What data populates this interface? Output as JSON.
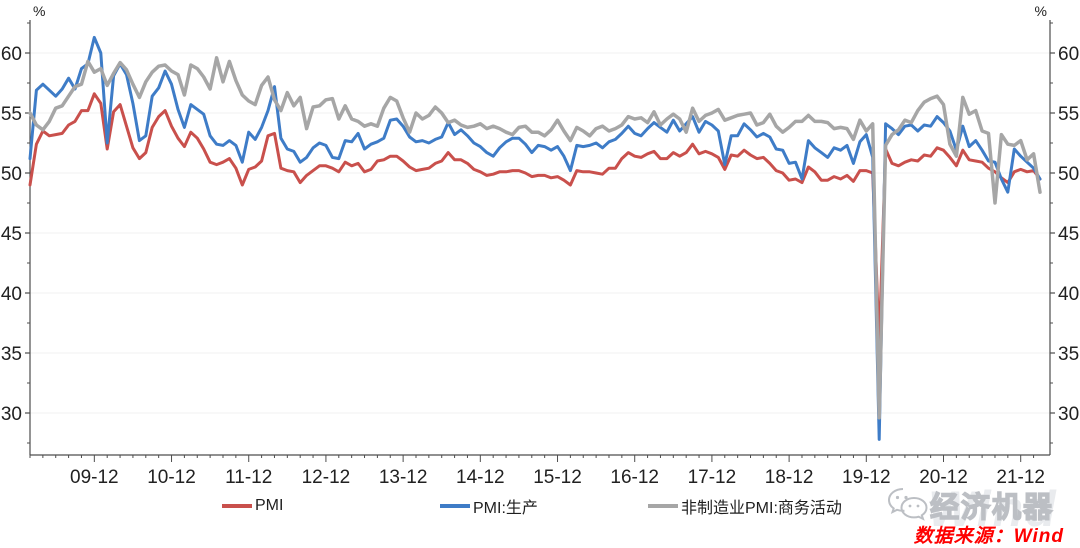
{
  "chart_data": {
    "type": "line",
    "title": "",
    "unit_label": "%",
    "x_start": "2009-02",
    "x_end": "2022-03",
    "frequency": "monthly",
    "x_tick_labels": [
      "09-12",
      "10-12",
      "11-12",
      "12-12",
      "13-12",
      "14-12",
      "15-12",
      "16-12",
      "17-12",
      "18-12",
      "19-12",
      "20-12",
      "21-12"
    ],
    "x_tick_indices": [
      10,
      22,
      34,
      46,
      58,
      70,
      82,
      94,
      106,
      118,
      130,
      142,
      154
    ],
    "ylim": [
      26.5,
      62.75
    ],
    "y_ticks": [
      30,
      35,
      40,
      45,
      50,
      55,
      60
    ],
    "y_minor_ticks": [
      27.5,
      32.5,
      37.5,
      42.5,
      47.5,
      52.5,
      57.5,
      62.5
    ],
    "grid": "horizontal-faint",
    "legend_position": "bottom",
    "series": [
      {
        "name": "PMI",
        "color": "#c9504c",
        "width": 3,
        "values": [
          49.0,
          52.4,
          53.5,
          53.1,
          53.2,
          53.3,
          54.0,
          54.3,
          55.2,
          55.2,
          56.6,
          55.8,
          52.0,
          55.1,
          55.7,
          53.9,
          52.1,
          51.2,
          51.7,
          53.8,
          54.7,
          55.2,
          53.9,
          52.9,
          52.2,
          53.4,
          52.9,
          52.0,
          50.9,
          50.7,
          50.9,
          51.2,
          50.4,
          49.0,
          50.3,
          50.5,
          51.0,
          53.1,
          53.3,
          50.4,
          50.2,
          50.1,
          49.2,
          49.8,
          50.2,
          50.6,
          50.6,
          50.4,
          50.1,
          50.9,
          50.6,
          50.8,
          50.1,
          50.3,
          51.0,
          51.1,
          51.4,
          51.4,
          51.0,
          50.5,
          50.2,
          50.3,
          50.4,
          50.8,
          51.0,
          51.7,
          51.1,
          51.1,
          50.8,
          50.3,
          50.1,
          49.8,
          49.9,
          50.1,
          50.1,
          50.2,
          50.2,
          50.0,
          49.7,
          49.8,
          49.8,
          49.6,
          49.7,
          49.4,
          49.0,
          50.2,
          50.1,
          50.1,
          50.0,
          49.9,
          50.4,
          50.4,
          51.2,
          51.7,
          51.4,
          51.3,
          51.6,
          51.8,
          51.2,
          51.2,
          51.7,
          51.4,
          51.7,
          52.4,
          51.6,
          51.8,
          51.6,
          51.3,
          50.3,
          51.5,
          51.4,
          51.9,
          51.5,
          51.2,
          51.3,
          50.8,
          50.2,
          50.0,
          49.4,
          49.5,
          49.2,
          50.5,
          50.1,
          49.4,
          49.4,
          49.7,
          49.5,
          49.8,
          49.3,
          50.2,
          50.2,
          50.0,
          35.7,
          52.0,
          50.8,
          50.6,
          50.9,
          51.1,
          51.0,
          51.5,
          51.4,
          52.1,
          51.9,
          51.3,
          50.6,
          51.9,
          51.1,
          51.0,
          50.9,
          50.4,
          50.1,
          49.6,
          49.2,
          50.1,
          50.3,
          50.1,
          50.2,
          49.5
        ]
      },
      {
        "name": "PMI:生产",
        "color": "#3e7cc7",
        "width": 3,
        "values": [
          51.2,
          56.9,
          57.4,
          56.9,
          56.4,
          57.0,
          57.9,
          57.0,
          58.7,
          59.1,
          61.3,
          60.0,
          52.5,
          58.1,
          59.1,
          58.2,
          55.8,
          52.7,
          53.1,
          56.4,
          57.1,
          58.5,
          57.4,
          55.3,
          53.8,
          55.7,
          55.3,
          54.9,
          53.1,
          52.4,
          52.3,
          52.7,
          52.3,
          50.9,
          53.4,
          52.8,
          53.8,
          55.2,
          57.2,
          52.9,
          52.0,
          51.8,
          50.9,
          51.3,
          52.1,
          52.5,
          52.3,
          51.3,
          51.2,
          52.7,
          52.6,
          53.3,
          52.0,
          52.4,
          52.6,
          52.9,
          54.4,
          54.5,
          53.9,
          53.0,
          52.6,
          52.7,
          52.5,
          52.8,
          53.0,
          54.2,
          53.2,
          53.6,
          53.1,
          52.5,
          52.2,
          51.7,
          51.4,
          52.1,
          52.6,
          52.9,
          52.9,
          52.4,
          51.7,
          52.3,
          52.2,
          51.9,
          52.2,
          51.4,
          50.2,
          52.3,
          52.2,
          52.3,
          52.5,
          52.1,
          52.6,
          52.8,
          53.3,
          53.9,
          53.3,
          53.1,
          53.7,
          54.2,
          53.8,
          53.4,
          54.4,
          53.5,
          54.1,
          54.7,
          53.4,
          54.3,
          54.0,
          53.5,
          50.7,
          53.1,
          53.1,
          54.1,
          53.6,
          53.0,
          53.3,
          53.0,
          52.0,
          51.9,
          50.8,
          50.9,
          49.5,
          52.7,
          52.1,
          51.7,
          51.3,
          52.1,
          51.9,
          52.3,
          50.8,
          52.6,
          53.2,
          51.3,
          27.8,
          54.1,
          53.7,
          53.2,
          53.9,
          54.0,
          53.5,
          54.0,
          53.9,
          54.7,
          54.2,
          53.5,
          51.9,
          53.9,
          52.2,
          52.7,
          51.9,
          51.0,
          50.9,
          49.5,
          48.4,
          52.0,
          51.4,
          50.9,
          50.4,
          49.5
        ]
      },
      {
        "name": "非制造业PMI:商务活动",
        "color": "#a6a6a6",
        "width": 3.5,
        "values": [
          55.0,
          54.0,
          53.6,
          54.3,
          55.4,
          55.6,
          56.4,
          57.2,
          57.4,
          59.3,
          58.4,
          58.7,
          57.3,
          58.3,
          59.2,
          58.6,
          57.4,
          56.3,
          57.6,
          58.4,
          58.9,
          59.0,
          58.5,
          58.2,
          56.5,
          59.0,
          58.7,
          58.0,
          57.0,
          59.6,
          57.6,
          59.3,
          57.7,
          56.5,
          56.0,
          55.7,
          57.3,
          58.0,
          56.1,
          55.2,
          56.7,
          55.6,
          56.3,
          53.7,
          55.5,
          55.6,
          56.1,
          56.2,
          54.5,
          55.6,
          54.5,
          54.3,
          53.9,
          54.1,
          53.9,
          55.4,
          56.3,
          56.0,
          54.6,
          53.4,
          55.0,
          54.5,
          54.8,
          55.5,
          55.0,
          54.2,
          54.4,
          54.0,
          53.8,
          53.9,
          54.1,
          53.7,
          53.9,
          53.7,
          53.4,
          53.2,
          53.8,
          53.9,
          53.4,
          53.4,
          53.1,
          53.6,
          54.4,
          53.5,
          52.7,
          53.8,
          53.5,
          53.1,
          53.7,
          53.9,
          53.5,
          53.7,
          54.0,
          54.7,
          54.5,
          54.6,
          54.2,
          55.1,
          54.0,
          54.5,
          54.9,
          54.5,
          53.4,
          55.4,
          54.3,
          54.8,
          55.0,
          55.3,
          54.4,
          54.6,
          54.8,
          54.9,
          55.0,
          54.0,
          54.2,
          54.9,
          53.9,
          53.4,
          53.8,
          54.3,
          54.3,
          54.8,
          54.3,
          54.3,
          54.2,
          53.7,
          53.8,
          53.7,
          52.8,
          54.4,
          53.5,
          54.1,
          29.6,
          52.3,
          53.2,
          53.6,
          54.4,
          54.2,
          55.2,
          55.9,
          56.2,
          56.4,
          55.7,
          52.4,
          51.4,
          56.3,
          54.9,
          55.2,
          53.5,
          53.3,
          47.5,
          53.2,
          52.4,
          52.3,
          52.7,
          51.1,
          51.6,
          48.4
        ]
      }
    ],
    "style": {
      "grid_color": "#f2f2f2",
      "axis_color": "#4d4d4d",
      "label_color": "#212121",
      "axis_font_size": 19,
      "percent_font_size": 14
    }
  },
  "footer": {
    "source_label": "数据来源：Wind",
    "watermark_brand": "经济机器",
    "watermark_bg": "Wind"
  }
}
